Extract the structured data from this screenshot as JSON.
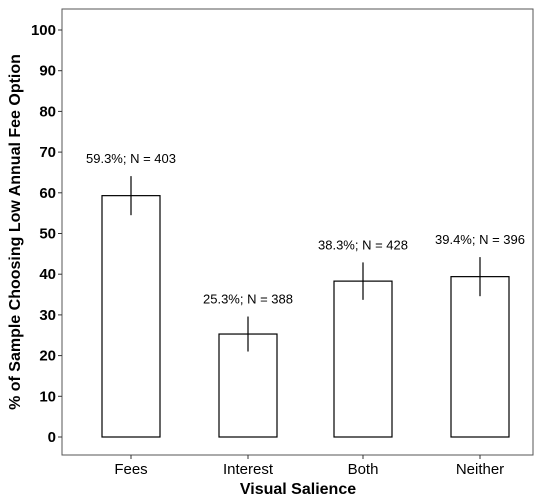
{
  "chart_data": {
    "type": "bar",
    "title": "",
    "xlabel": "Visual Salience",
    "ylabel": "% of Sample Choosing Low Annual Fee Option",
    "categories": [
      "Fees",
      "Interest",
      "Both",
      "Neither"
    ],
    "values": [
      59.3,
      25.3,
      38.3,
      39.4
    ],
    "error_low": [
      54.5,
      21.0,
      33.7,
      34.6
    ],
    "error_high": [
      64.1,
      29.6,
      42.9,
      44.2
    ],
    "data_labels": [
      "59.3%; N = 403",
      "25.3%; N = 388",
      "38.3%; N = 428",
      "39.4%; N = 396"
    ],
    "ylim": [
      0,
      100
    ],
    "yticks": [
      0,
      10,
      20,
      30,
      40,
      50,
      60,
      70,
      80,
      90,
      100
    ],
    "grid": false,
    "legend": "none",
    "bar_fill": "#ffffff",
    "bar_stroke": "#000000"
  }
}
